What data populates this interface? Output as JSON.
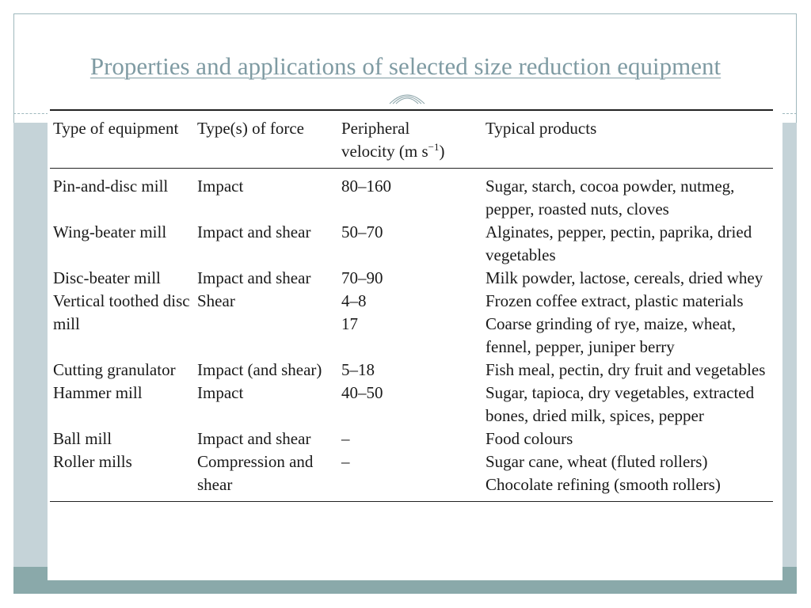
{
  "slide": {
    "title": "Properties and applications of selected size reduction equipment"
  },
  "table": {
    "headers": {
      "type": "Type of equipment",
      "force": "Type(s) of force",
      "velocity_prefix": "Peripheral velocity (m s",
      "velocity_exp": "−1",
      "velocity_suffix": ")",
      "products": "Typical products"
    },
    "rows": [
      {
        "equipment": "Pin-and-disc mill",
        "force": "Impact",
        "velocity": "80–160",
        "products": "Sugar, starch, cocoa powder, nutmeg, pepper, roasted nuts, cloves"
      },
      {
        "equipment": "Wing-beater mill",
        "force": "Impact and shear",
        "velocity": "50–70",
        "products": "Alginates, pepper, pectin, paprika, dried vegetables"
      },
      {
        "equipment": "Disc-beater mill",
        "force": "Impact and shear",
        "velocity": "70–90",
        "products": "Milk powder, lactose, cereals, dried whey"
      },
      {
        "equipment": "Vertical toothed disc mill",
        "force": "Shear",
        "velocity": "4–8\n17",
        "products": "Frozen coffee extract, plastic materials\nCoarse grinding of rye, maize, wheat, fennel, pepper, juniper berry"
      },
      {
        "equipment": "Cutting granulator",
        "force": "Impact (and shear)",
        "velocity": "5–18",
        "products": "Fish meal, pectin, dry fruit and vegetables"
      },
      {
        "equipment": "Hammer mill",
        "force": "Impact",
        "velocity": "40–50",
        "products": "Sugar, tapioca, dry vegetables, extracted bones, dried milk, spices, pepper"
      },
      {
        "equipment": "Ball mill",
        "force": "Impact and shear",
        "velocity": "–",
        "products": "Food colours"
      },
      {
        "equipment": "Roller mills",
        "force": "Compression and shear",
        "velocity": "–",
        "products": "Sugar cane, wheat (fluted rollers)\nChocolate refining (smooth rollers)"
      }
    ]
  }
}
